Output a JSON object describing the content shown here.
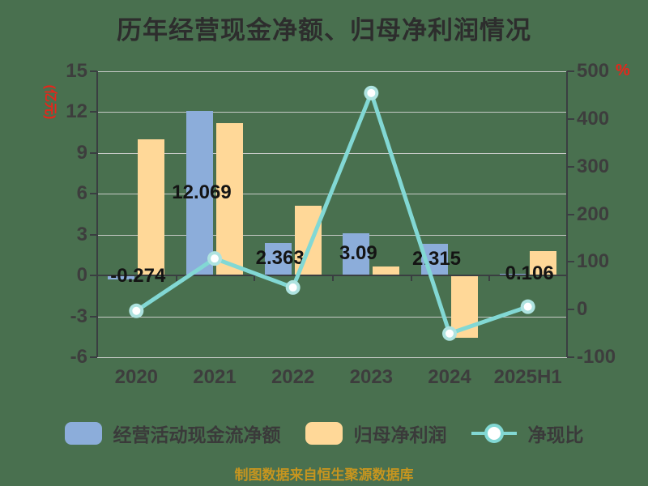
{
  "title": "历年经营现金净额、归母净利润情况",
  "footer": "制图数据来自恒生聚源数据库",
  "left_axis": {
    "unit": "(亿元)",
    "tick_labels": [
      "15",
      "12",
      "9",
      "6",
      "3",
      "0",
      "-3",
      "-6"
    ],
    "max": 15,
    "min": -6
  },
  "right_axis": {
    "unit": "%",
    "tick_labels": [
      "500",
      "400",
      "300",
      "200",
      "100",
      "0",
      "-100"
    ],
    "max": 500,
    "min": -100
  },
  "legend": {
    "cash_flow": "经营活动现金流净额",
    "net_profit": "归母净利润",
    "ratio": "净现比"
  },
  "chart_data": {
    "type": "bar+line",
    "categories": [
      "2020",
      "2021",
      "2022",
      "2023",
      "2024",
      "2025H1"
    ],
    "series": [
      {
        "key": "cash_flow",
        "name": "经营活动现金流净额",
        "type": "bar",
        "axis": "left",
        "values": [
          -0.274,
          12.069,
          2.363,
          3.09,
          2.315,
          0.106
        ],
        "labels": [
          "-0.274",
          "12.069",
          "2.363",
          "3.09",
          "2.315",
          "0.106"
        ]
      },
      {
        "key": "net_profit",
        "name": "归母净利润",
        "type": "bar",
        "axis": "left",
        "values": [
          10.0,
          11.2,
          5.1,
          0.68,
          -4.6,
          1.77
        ]
      },
      {
        "key": "ratio",
        "name": "净现比",
        "type": "line",
        "axis": "right",
        "values": [
          -2.7,
          107.1,
          46.3,
          454.4,
          -50.3,
          6.0
        ]
      }
    ],
    "ylim_left": [
      -6,
      15
    ],
    "ylim_right": [
      -100,
      500
    ],
    "grid": true,
    "legend_position": "bottom"
  },
  "colors": {
    "background": "#49704f",
    "title_text": "#2d2d2d",
    "cash_flow_bar": "#8cadda",
    "net_profit_bar": "#ffd898",
    "ratio_line": "#82d8d4",
    "ratio_marker_fill": "#ffffff",
    "ratio_marker_halo": "#aee3e0",
    "axis_text": "#3d3d3d",
    "unit_text": "#e8251a",
    "data_label_text": "#141414",
    "footer_text": "#c6951f",
    "gridline": "#c6cac6",
    "axis_line": "#3a3e41"
  }
}
